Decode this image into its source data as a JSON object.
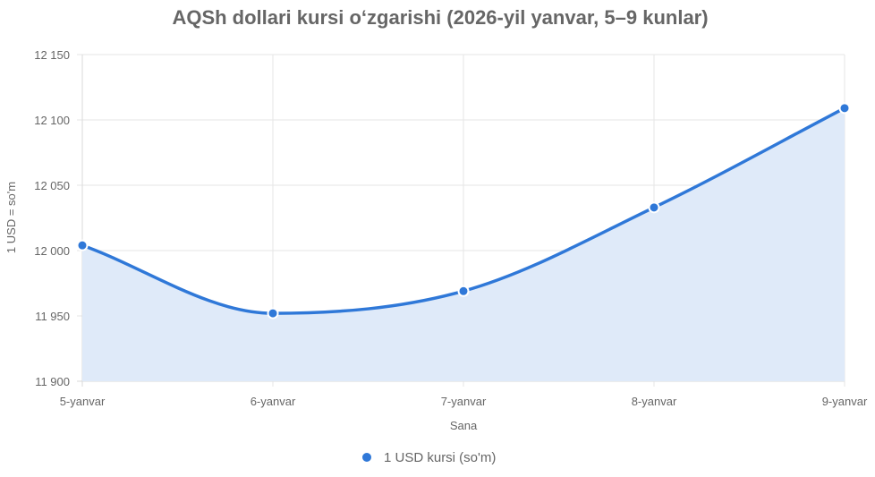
{
  "chart_data": {
    "type": "area",
    "title": "AQSh dollari kursi o‘zgarishi (2026-yil yanvar, 5–9 kunlar)",
    "xlabel": "Sana",
    "ylabel": "1 USD = so'm",
    "categories": [
      "5-yanvar",
      "6-yanvar",
      "7-yanvar",
      "8-yanvar",
      "9-yanvar"
    ],
    "series": [
      {
        "name": "1 USD kursi (so'm)",
        "values": [
          12004,
          11952,
          11969,
          12033,
          12109
        ],
        "color": "#2f78d8",
        "fill": "#dfeaf9"
      }
    ],
    "ylim": [
      11900,
      12150
    ],
    "yticks": [
      11900,
      11950,
      12000,
      12050,
      12100,
      12150
    ],
    "ytick_labels": [
      "11 900",
      "11 950",
      "12 000",
      "12 050",
      "12 100",
      "12 150"
    ],
    "grid": true,
    "legend": "bottom"
  }
}
